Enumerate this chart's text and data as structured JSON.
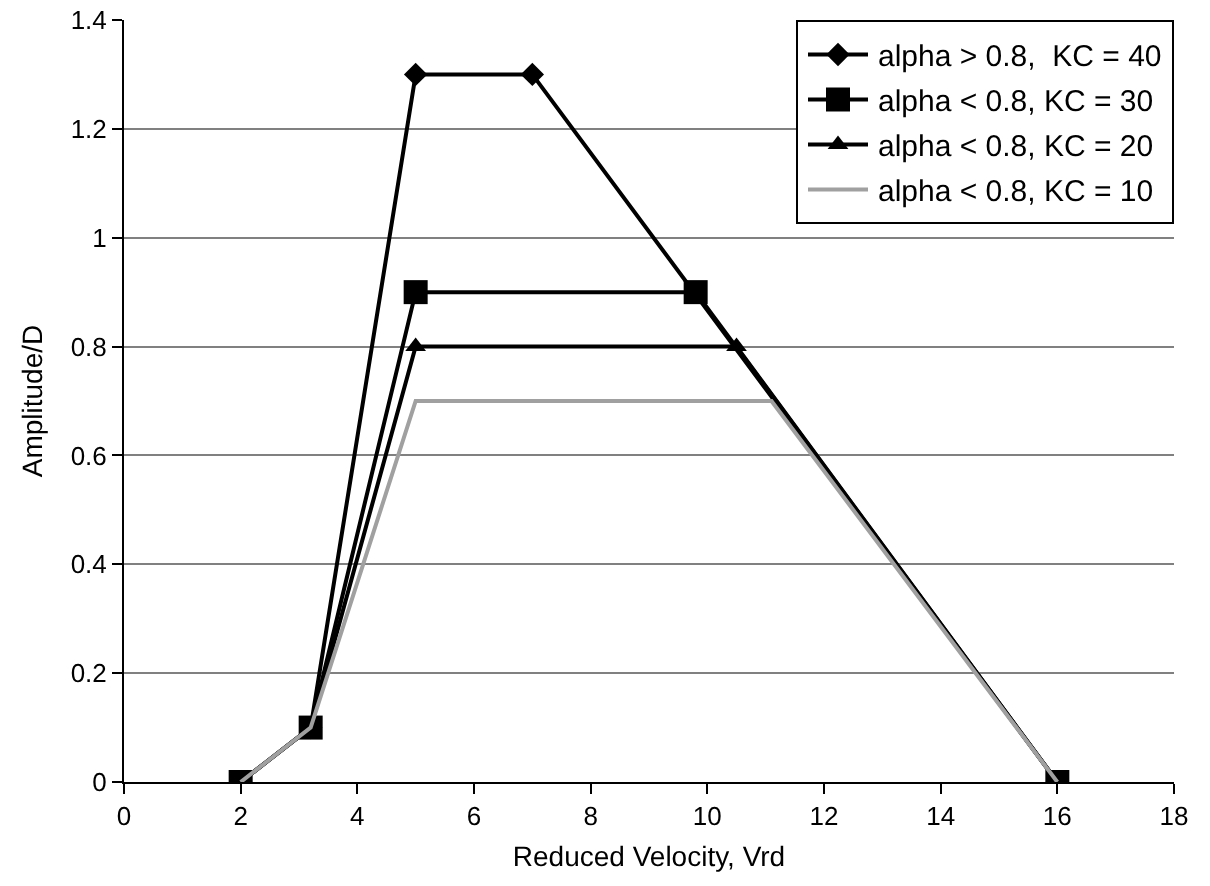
{
  "chart_data": {
    "type": "line",
    "xlabel": "Reduced Velocity, Vrd",
    "ylabel": "Amplitude/D",
    "xlim": [
      0,
      18
    ],
    "xticks": [
      0,
      2,
      4,
      6,
      8,
      10,
      12,
      14,
      16,
      18
    ],
    "ylim": [
      0,
      1.4
    ],
    "yticks": [
      0,
      0.2,
      0.4,
      0.6,
      0.8,
      1,
      1.2,
      1.4
    ],
    "grid": "y",
    "legend": "top right",
    "line_style": "solid",
    "series": [
      {
        "name": "alpha > 0.8,  KC = 40",
        "color": "#000000",
        "marker": "diamond",
        "x": [
          2,
          3.2,
          5,
          7,
          16
        ],
        "values": [
          0,
          0.1,
          1.3,
          1.3,
          0
        ]
      },
      {
        "name": "alpha < 0.8, KC = 30",
        "color": "#000000",
        "marker": "square",
        "x": [
          2,
          3.2,
          5,
          9.8,
          16
        ],
        "values": [
          0,
          0.1,
          0.9,
          0.9,
          0
        ]
      },
      {
        "name": "alpha < 0.8, KC = 20",
        "color": "#000000",
        "marker": "triangle",
        "x": [
          2,
          3.2,
          5,
          10.5,
          16
        ],
        "values": [
          0,
          0.1,
          0.8,
          0.8,
          0
        ]
      },
      {
        "name": "alpha < 0.8, KC = 10",
        "color": "#a0a0a0",
        "marker": "none",
        "x": [
          2,
          3.2,
          5,
          11.1,
          16
        ],
        "values": [
          0,
          0.1,
          0.7,
          0.7,
          0
        ]
      }
    ]
  }
}
